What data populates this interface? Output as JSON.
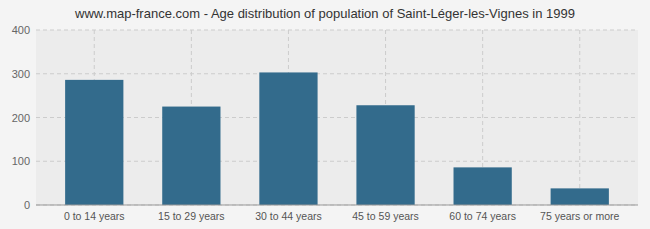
{
  "chart_data": {
    "type": "bar",
    "title": "www.map-france.com - Age distribution of population of Saint-Léger-les-Vignes in 1999",
    "categories": [
      "0 to 14 years",
      "15 to 29 years",
      "30 to 44 years",
      "45 to 59 years",
      "60 to 74 years",
      "75 years or more"
    ],
    "values": [
      286,
      225,
      303,
      228,
      86,
      38
    ],
    "color": "#336b8c",
    "ylim": [
      0,
      400
    ],
    "yticks": [
      0,
      100,
      200,
      300,
      400
    ],
    "grid": true
  }
}
